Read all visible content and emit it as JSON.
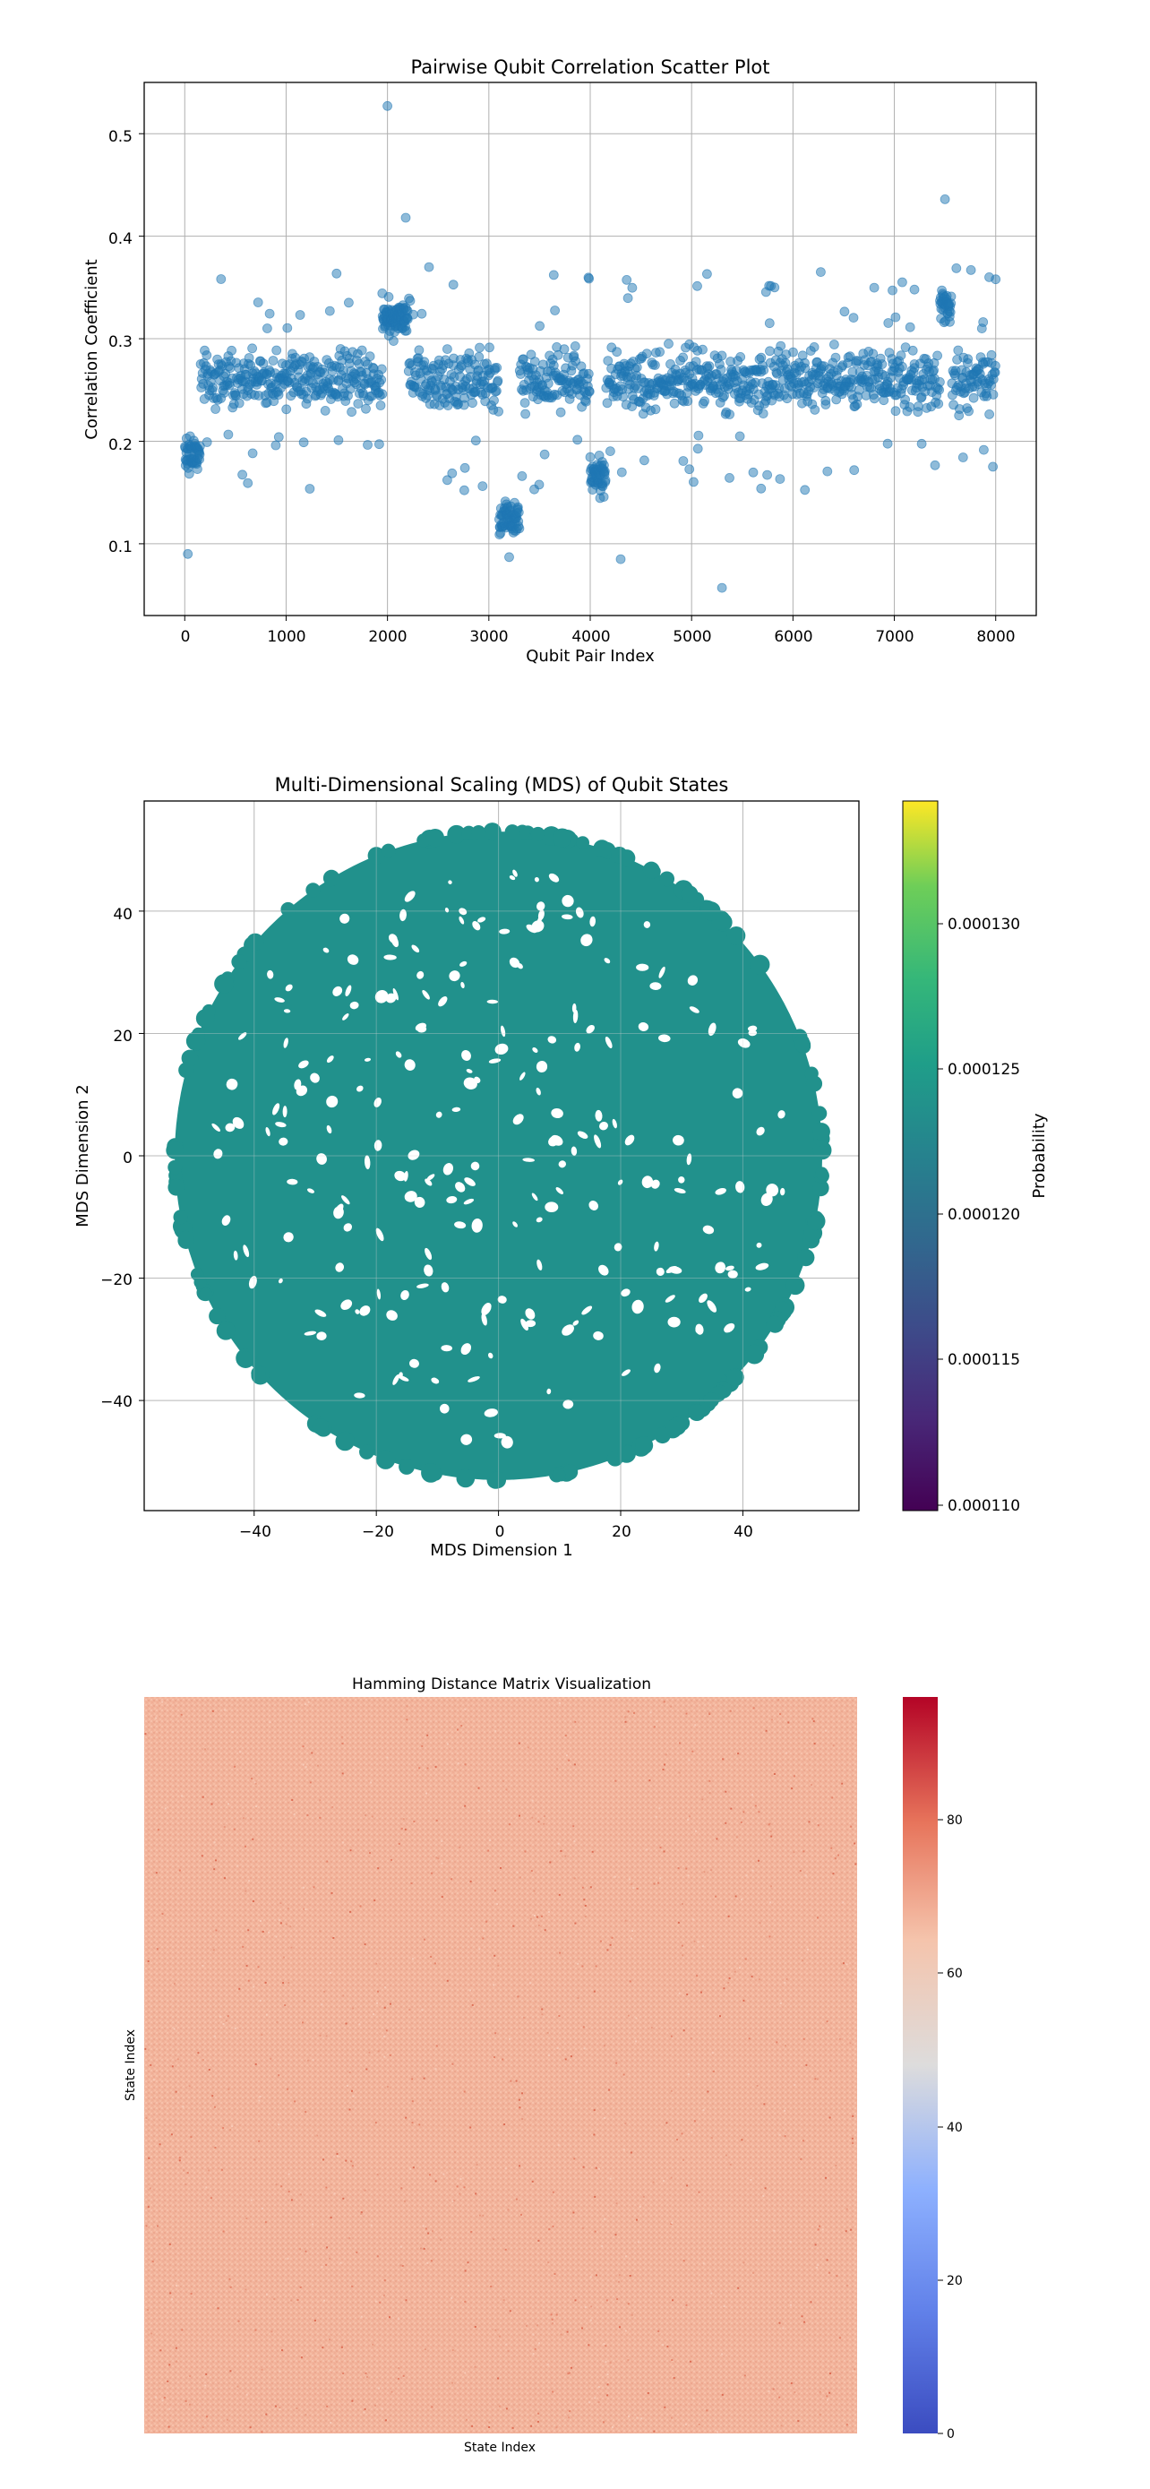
{
  "charts": {
    "scatter": {
      "title": "Pairwise Qubit Correlation Scatter Plot",
      "xlabel": "Qubit Pair Index",
      "ylabel": "Correlation Coefficient",
      "xticks": [
        "0",
        "1000",
        "2000",
        "3000",
        "4000",
        "5000",
        "6000",
        "7000",
        "8000"
      ],
      "yticks": [
        "0.1",
        "0.2",
        "0.3",
        "0.4",
        "0.5"
      ]
    },
    "mds": {
      "title": "Multi-Dimensional Scaling (MDS) of Qubit States",
      "xlabel": "MDS Dimension 1",
      "ylabel": "MDS Dimension 2",
      "xticks": [
        "−40",
        "−20",
        "0",
        "20",
        "40"
      ],
      "yticks": [
        "−40",
        "−20",
        "0",
        "20",
        "40"
      ],
      "colorbar_label": "Probability",
      "colorbar_ticks": [
        "0.000110",
        "0.000115",
        "0.000120",
        "0.000125",
        "0.000130"
      ]
    },
    "hamming": {
      "title": "Hamming Distance Matrix Visualization",
      "xlabel": "State Index",
      "ylabel": "State Index",
      "colorbar_ticks": [
        "0",
        "20",
        "40",
        "60",
        "80"
      ]
    }
  },
  "chart_data": [
    {
      "type": "scatter",
      "title": "Pairwise Qubit Correlation Scatter Plot",
      "xlabel": "Qubit Pair Index",
      "ylabel": "Correlation Coefficient",
      "xlim": [
        -400,
        8400
      ],
      "ylim": [
        0.03,
        0.55
      ],
      "grid": true,
      "marker_color": "#1f77b4",
      "point_count_approx": 8000,
      "core_band": [
        0.22,
        0.3
      ],
      "clusters": [
        {
          "x_range": [
            0,
            150
          ],
          "y_center": 0.185
        },
        {
          "x_range": [
            1950,
            2200
          ],
          "y_center": 0.32
        },
        {
          "x_range": [
            3100,
            3300
          ],
          "y_center": 0.125
        },
        {
          "x_range": [
            4000,
            4150
          ],
          "y_center": 0.165
        },
        {
          "x_range": [
            7450,
            7560
          ],
          "y_center": 0.33
        }
      ],
      "outliers": [
        {
          "x": 2000,
          "y": 0.527
        },
        {
          "x": 2180,
          "y": 0.418
        },
        {
          "x": 7500,
          "y": 0.436
        },
        {
          "x": 5300,
          "y": 0.057
        },
        {
          "x": 4300,
          "y": 0.085
        },
        {
          "x": 30,
          "y": 0.09
        },
        {
          "x": 3200,
          "y": 0.087
        },
        {
          "x": 8000,
          "y": 0.358
        }
      ]
    },
    {
      "type": "scatter",
      "title": "Multi-Dimensional Scaling (MDS) of Qubit States",
      "xlabel": "MDS Dimension 1",
      "ylabel": "MDS Dimension 2",
      "xlim": [
        -58,
        59
      ],
      "ylim": [
        -58,
        58
      ],
      "grid": true,
      "marker_color": "#21918c",
      "shape": "disc",
      "radius": 53,
      "colorbar": {
        "label": "Probability",
        "range": [
          0.00011,
          0.000134
        ],
        "colormap": "viridis"
      }
    },
    {
      "type": "heatmap",
      "title": "Hamming Distance Matrix Visualization",
      "xlabel": "State Index",
      "ylabel": "State Index",
      "dominant_value_approx": 66,
      "colorbar": {
        "range": [
          0,
          96
        ],
        "colormap": "coolwarm"
      }
    }
  ]
}
